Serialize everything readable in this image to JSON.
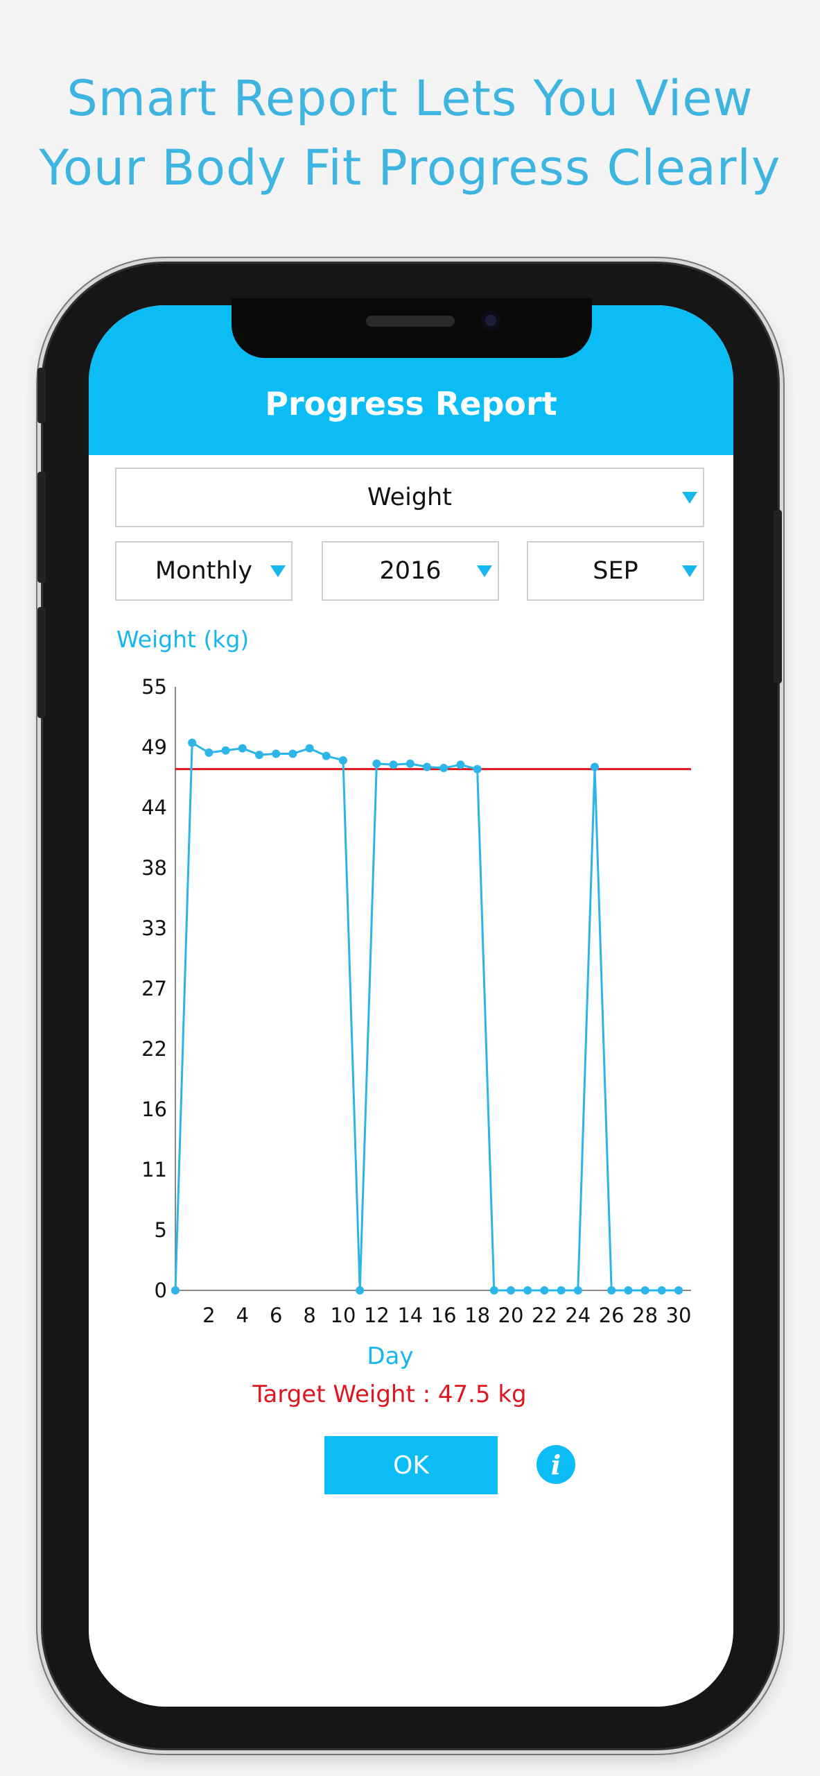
{
  "headline": {
    "line1": "Smart Report Lets You View",
    "line2": "Your Body Fit Progress Clearly"
  },
  "app": {
    "title": "Progress Report",
    "metric_select": "Weight",
    "period_select": "Monthly",
    "year_select": "2016",
    "month_select": "SEP",
    "target_text": "Target Weight : 47.5 kg",
    "ok_label": "OK",
    "info_glyph": "i"
  },
  "colors": {
    "accent": "#0cbdf5",
    "line": "#2bb5e8",
    "target": "#e0161f",
    "headline": "#3eb5e0"
  },
  "chart_data": {
    "type": "line",
    "ylabel": "Weight (kg)",
    "xlabel": "Day",
    "ylim": [
      0,
      55
    ],
    "y_ticks": [
      "0",
      "5",
      "11",
      "16",
      "22",
      "27",
      "33",
      "38",
      "44",
      "49",
      "55"
    ],
    "x_ticks": [
      "2",
      "4",
      "6",
      "8",
      "10",
      "12",
      "14",
      "16",
      "18",
      "20",
      "22",
      "24",
      "26",
      "28",
      "30"
    ],
    "x": [
      0,
      1,
      2,
      3,
      4,
      5,
      6,
      7,
      8,
      9,
      10,
      11,
      12,
      13,
      14,
      15,
      16,
      17,
      18,
      19,
      20,
      21,
      22,
      23,
      24,
      25,
      26,
      27,
      28,
      29,
      30
    ],
    "series": [
      {
        "values": [
          0,
          49.9,
          49.0,
          49.2,
          49.4,
          48.8,
          48.9,
          48.9,
          49.4,
          48.7,
          48.3,
          0,
          48.0,
          47.9,
          48.0,
          47.7,
          47.6,
          47.9,
          47.5,
          0,
          0,
          0,
          0,
          0,
          0,
          47.7,
          0,
          0,
          0,
          0,
          0
        ]
      }
    ],
    "target_value": 47.5,
    "grid": false
  }
}
